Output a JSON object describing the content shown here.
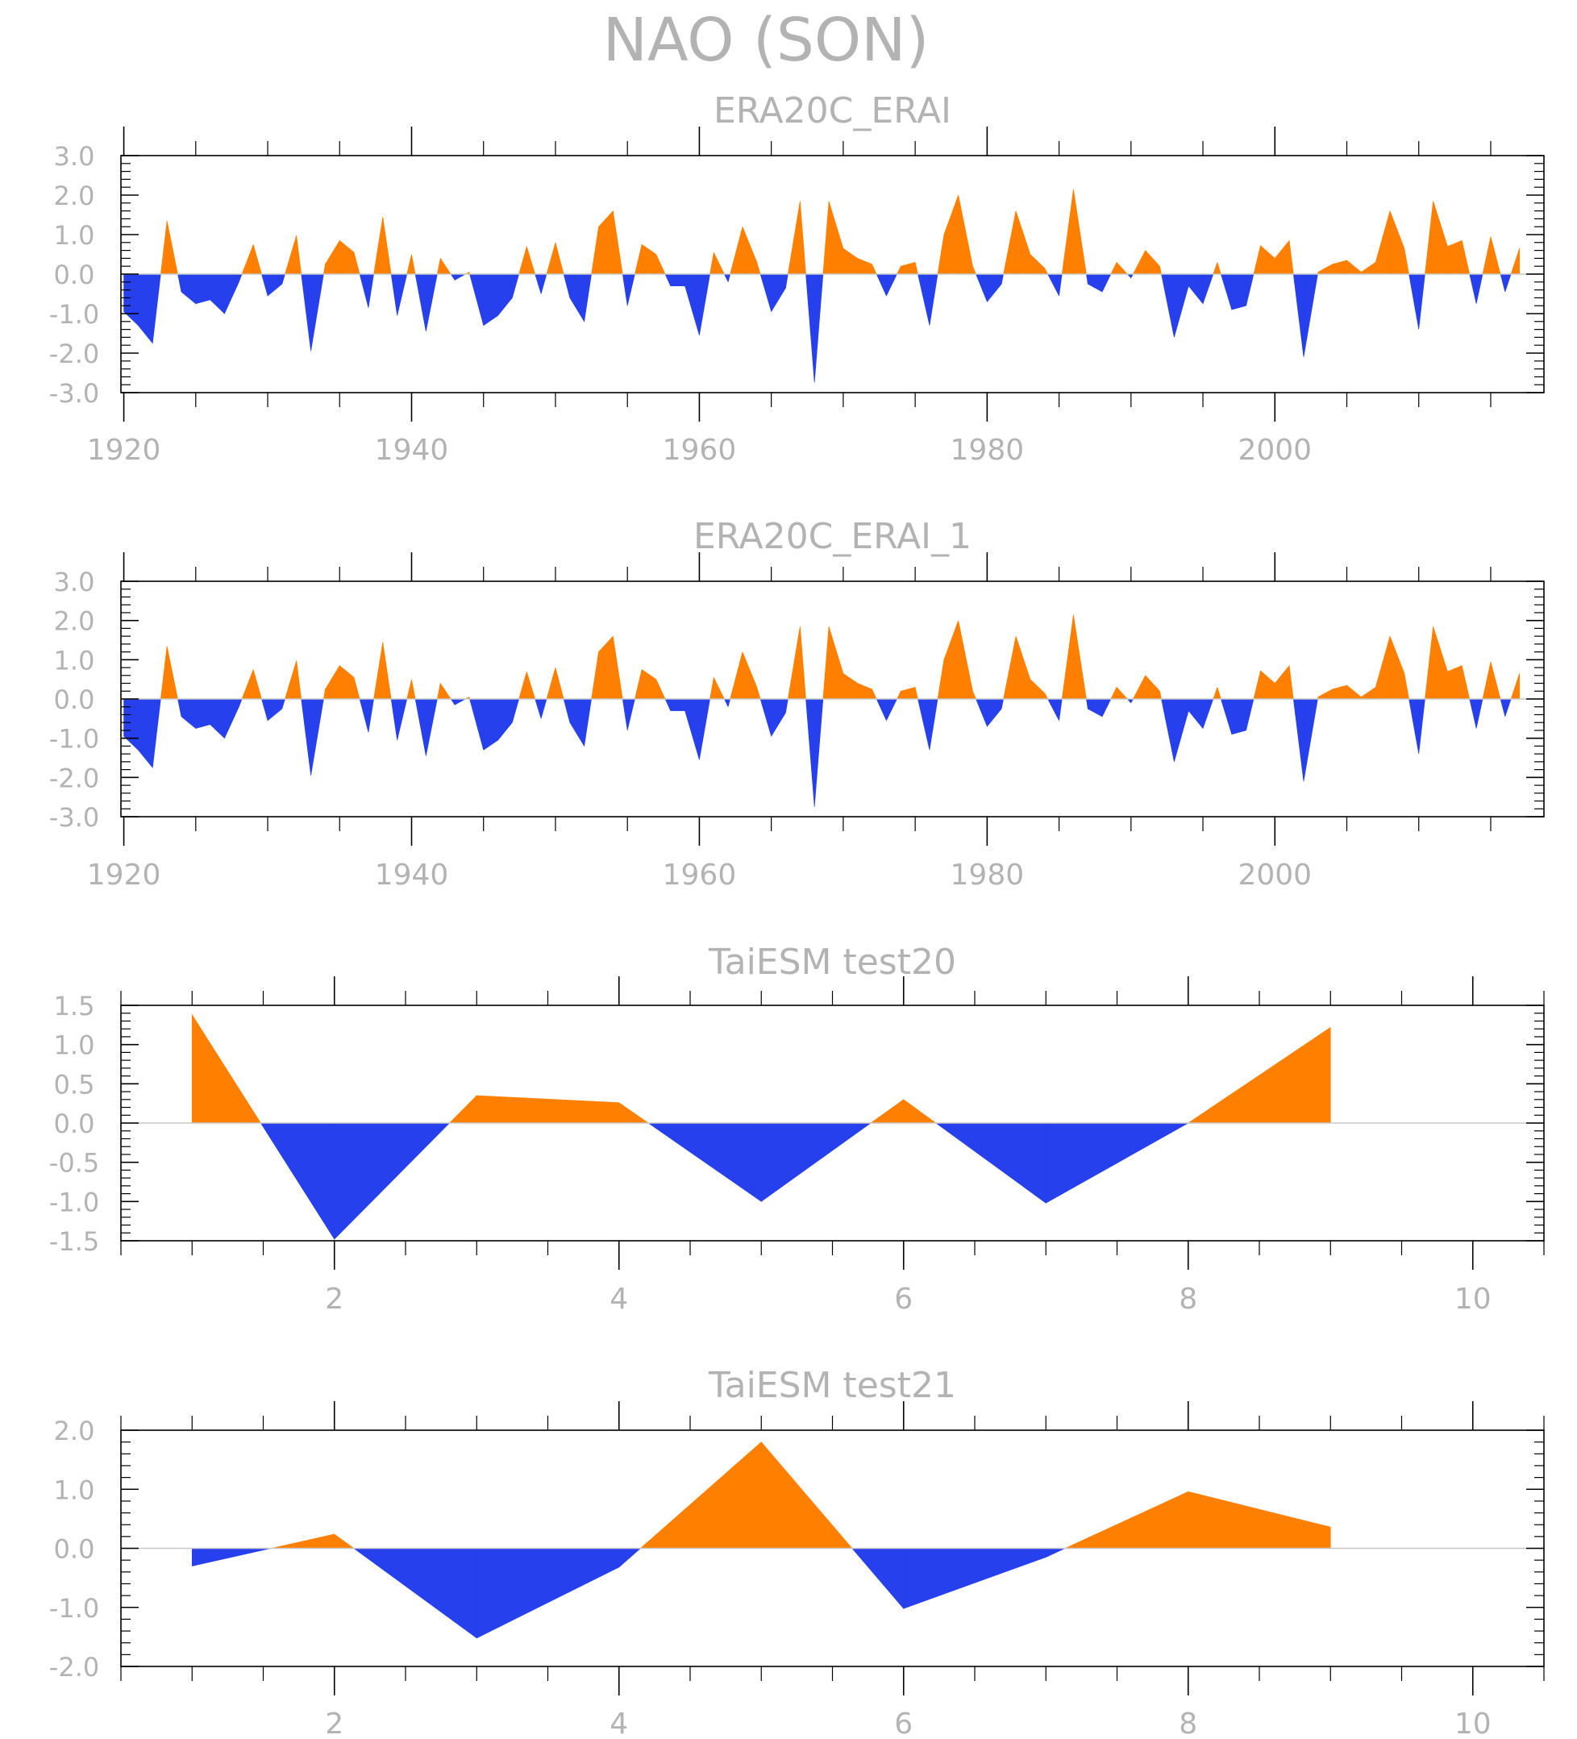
{
  "title": "NAO (SON)",
  "colors": {
    "positive": "#ff7f00",
    "negative": "#2540ec"
  },
  "chart_data": [
    {
      "type": "area",
      "title": "ERA20C_ERAI",
      "ylim": [
        -3,
        3
      ],
      "yticks": [
        3.0,
        2.0,
        1.0,
        0.0,
        -1.0,
        -2.0,
        -3.0
      ],
      "ytick_labels": [
        "3.0",
        "2.0",
        "1.0",
        "0.0",
        "-1.0",
        "-2.0",
        "-3.0"
      ],
      "xlim": [
        1919.8,
        2018.7
      ],
      "xticks": [
        1920,
        1940,
        1960,
        1980,
        2000
      ],
      "xtick_labels": [
        "1920",
        "1940",
        "1960",
        "1980",
        "2000"
      ],
      "x_minor_step": 5,
      "x": [
        1920,
        1921,
        1922,
        1923,
        1924,
        1925,
        1926,
        1927,
        1928,
        1929,
        1930,
        1931,
        1932,
        1933,
        1934,
        1935,
        1936,
        1937,
        1938,
        1939,
        1940,
        1941,
        1942,
        1943,
        1944,
        1945,
        1946,
        1947,
        1948,
        1949,
        1950,
        1951,
        1952,
        1953,
        1954,
        1955,
        1956,
        1957,
        1958,
        1959,
        1960,
        1961,
        1962,
        1963,
        1964,
        1965,
        1966,
        1967,
        1968,
        1969,
        1970,
        1971,
        1972,
        1973,
        1974,
        1975,
        1976,
        1977,
        1978,
        1979,
        1980,
        1981,
        1982,
        1983,
        1984,
        1985,
        1986,
        1987,
        1988,
        1989,
        1990,
        1991,
        1992,
        1993,
        1994,
        1995,
        1996,
        1997,
        1998,
        1999,
        2000,
        2001,
        2002,
        2003,
        2004,
        2005,
        2006,
        2007,
        2008,
        2009,
        2010,
        2011,
        2012,
        2013,
        2014,
        2015,
        2016,
        2017
      ],
      "values": [
        -0.95,
        -1.3,
        -1.75,
        1.35,
        -0.45,
        -0.75,
        -0.65,
        -1.0,
        -0.2,
        0.75,
        -0.55,
        -0.25,
        0.98,
        -1.95,
        0.25,
        0.85,
        0.55,
        -0.85,
        1.45,
        -1.05,
        0.5,
        -1.45,
        0.4,
        -0.15,
        0.05,
        -1.3,
        -1.05,
        -0.6,
        0.7,
        -0.5,
        0.8,
        -0.6,
        -1.2,
        1.2,
        1.6,
        -0.8,
        0.75,
        0.5,
        -0.3,
        -0.3,
        -1.55,
        0.55,
        -0.2,
        1.2,
        0.3,
        -0.95,
        -0.35,
        1.85,
        -2.75,
        1.85,
        0.65,
        0.4,
        0.25,
        -0.55,
        0.2,
        0.3,
        -1.3,
        1.0,
        2.0,
        0.2,
        -0.7,
        -0.25,
        1.6,
        0.5,
        0.15,
        -0.55,
        2.15,
        -0.25,
        -0.45,
        0.3,
        -0.1,
        0.6,
        0.2,
        -1.6,
        -0.3,
        -0.75,
        0.3,
        -0.9,
        -0.8,
        0.72,
        0.4,
        0.85,
        -2.1,
        0.05,
        0.25,
        0.35,
        0.05,
        0.3,
        1.6,
        0.65,
        -1.4,
        1.85,
        0.7,
        0.85,
        -0.75,
        0.95,
        -0.45,
        0.65
      ]
    },
    {
      "type": "area",
      "title": "ERA20C_ERAI_1",
      "ylim": [
        -3,
        3
      ],
      "yticks": [
        3.0,
        2.0,
        1.0,
        0.0,
        -1.0,
        -2.0,
        -3.0
      ],
      "ytick_labels": [
        "3.0",
        "2.0",
        "1.0",
        "0.0",
        "-1.0",
        "-2.0",
        "-3.0"
      ],
      "xlim": [
        1919.8,
        2018.7
      ],
      "xticks": [
        1920,
        1940,
        1960,
        1980,
        2000
      ],
      "xtick_labels": [
        "1920",
        "1940",
        "1960",
        "1980",
        "2000"
      ],
      "x_minor_step": 5,
      "x": [
        1920,
        1921,
        1922,
        1923,
        1924,
        1925,
        1926,
        1927,
        1928,
        1929,
        1930,
        1931,
        1932,
        1933,
        1934,
        1935,
        1936,
        1937,
        1938,
        1939,
        1940,
        1941,
        1942,
        1943,
        1944,
        1945,
        1946,
        1947,
        1948,
        1949,
        1950,
        1951,
        1952,
        1953,
        1954,
        1955,
        1956,
        1957,
        1958,
        1959,
        1960,
        1961,
        1962,
        1963,
        1964,
        1965,
        1966,
        1967,
        1968,
        1969,
        1970,
        1971,
        1972,
        1973,
        1974,
        1975,
        1976,
        1977,
        1978,
        1979,
        1980,
        1981,
        1982,
        1983,
        1984,
        1985,
        1986,
        1987,
        1988,
        1989,
        1990,
        1991,
        1992,
        1993,
        1994,
        1995,
        1996,
        1997,
        1998,
        1999,
        2000,
        2001,
        2002,
        2003,
        2004,
        2005,
        2006,
        2007,
        2008,
        2009,
        2010,
        2011,
        2012,
        2013,
        2014,
        2015,
        2016,
        2017
      ],
      "values": [
        -0.95,
        -1.3,
        -1.75,
        1.35,
        -0.45,
        -0.75,
        -0.65,
        -1.0,
        -0.2,
        0.75,
        -0.55,
        -0.25,
        0.98,
        -1.95,
        0.25,
        0.85,
        0.55,
        -0.85,
        1.45,
        -1.05,
        0.5,
        -1.45,
        0.4,
        -0.15,
        0.05,
        -1.3,
        -1.05,
        -0.6,
        0.7,
        -0.5,
        0.8,
        -0.6,
        -1.2,
        1.2,
        1.6,
        -0.8,
        0.75,
        0.5,
        -0.3,
        -0.3,
        -1.55,
        0.55,
        -0.2,
        1.2,
        0.3,
        -0.95,
        -0.35,
        1.85,
        -2.75,
        1.85,
        0.65,
        0.4,
        0.25,
        -0.55,
        0.2,
        0.3,
        -1.3,
        1.0,
        2.0,
        0.2,
        -0.7,
        -0.25,
        1.6,
        0.5,
        0.15,
        -0.55,
        2.15,
        -0.25,
        -0.45,
        0.3,
        -0.1,
        0.6,
        0.2,
        -1.6,
        -0.3,
        -0.75,
        0.3,
        -0.9,
        -0.8,
        0.72,
        0.4,
        0.85,
        -2.1,
        0.05,
        0.25,
        0.35,
        0.05,
        0.3,
        1.6,
        0.65,
        -1.4,
        1.85,
        0.7,
        0.85,
        -0.75,
        0.95,
        -0.45,
        0.65
      ]
    },
    {
      "type": "area",
      "title": "TaiESM test20",
      "ylim": [
        -1.5,
        1.5
      ],
      "yticks": [
        1.5,
        1.0,
        0.5,
        0.0,
        -0.5,
        -1.0,
        -1.5
      ],
      "ytick_labels": [
        "1.5",
        "1.0",
        "0.5",
        "0.0",
        "-0.5",
        "-1.0",
        "-1.5"
      ],
      "xlim": [
        0.5,
        10.5
      ],
      "xticks": [
        2,
        4,
        6,
        8,
        10
      ],
      "xtick_labels": [
        "2",
        "4",
        "6",
        "8",
        "10"
      ],
      "x_minor_step": 0.5,
      "x": [
        1,
        2,
        3,
        4,
        5,
        6,
        7,
        8,
        9
      ],
      "values": [
        1.38,
        -1.48,
        0.35,
        0.26,
        -1.0,
        0.3,
        -1.02,
        0.0,
        1.22
      ]
    },
    {
      "type": "area",
      "title": "TaiESM test21",
      "ylim": [
        -2,
        2
      ],
      "yticks": [
        2.0,
        1.0,
        0.0,
        -1.0,
        -2.0
      ],
      "ytick_labels": [
        "2.0",
        "1.0",
        "0.0",
        "-1.0",
        "-2.0"
      ],
      "xlim": [
        0.5,
        10.5
      ],
      "xticks": [
        2,
        4,
        6,
        8,
        10
      ],
      "xtick_labels": [
        "2",
        "4",
        "6",
        "8",
        "10"
      ],
      "x_minor_step": 0.5,
      "x": [
        1,
        2,
        3,
        4,
        5,
        6,
        7,
        8,
        9
      ],
      "values": [
        -0.3,
        0.24,
        -1.52,
        -0.32,
        1.8,
        -1.02,
        -0.15,
        0.96,
        0.36
      ]
    }
  ]
}
